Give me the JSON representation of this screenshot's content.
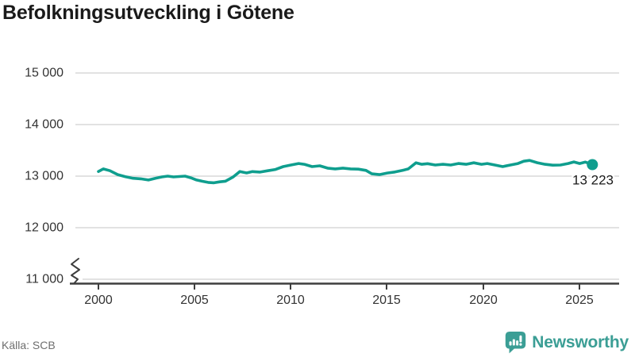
{
  "title": "Befolkningsutveckling i Götene",
  "source": "Källa: SCB",
  "brand": {
    "name": "Newsworthy"
  },
  "end_label": "13 223",
  "colors": {
    "title": "#1a1a1a",
    "line": "#0f9e8e",
    "grid": "#d9d9d9",
    "axis": "#3d3d3d",
    "tick_label": "#333333",
    "end_label": "#1a1a1a",
    "source": "#6e6e6e",
    "brand": "#3b9e95"
  },
  "chart_data": {
    "type": "line",
    "title": "Befolkningsutveckling i Götene",
    "xlabel": "",
    "ylabel": "",
    "legend": "none",
    "grid": "horizontal",
    "xlim": [
      2000,
      2026.1
    ],
    "ylim": [
      11000,
      15000
    ],
    "y_axis_break": true,
    "x_tick_values": [
      2000,
      2005,
      2010,
      2015,
      2020,
      2025
    ],
    "x_tick_labels": [
      "2000",
      "2005",
      "2010",
      "2015",
      "2020",
      "2025"
    ],
    "y_tick_values": [
      15000,
      14000,
      13000,
      12000,
      11000
    ],
    "y_tick_labels": [
      "15 000",
      "14 000",
      "13 000",
      "12 000",
      "11 000"
    ],
    "end_point": {
      "x": 2025.66,
      "value": 13223,
      "label": "13 223"
    },
    "points": [
      [
        2000.0,
        13090
      ],
      [
        2000.25,
        13140
      ],
      [
        2000.6,
        13105
      ],
      [
        2001.0,
        13030
      ],
      [
        2001.4,
        12990
      ],
      [
        2001.8,
        12958
      ],
      [
        2002.2,
        12948
      ],
      [
        2002.6,
        12925
      ],
      [
        2003.0,
        12962
      ],
      [
        2003.3,
        12985
      ],
      [
        2003.6,
        13000
      ],
      [
        2003.9,
        12985
      ],
      [
        2004.2,
        12992
      ],
      [
        2004.5,
        13000
      ],
      [
        2004.8,
        12968
      ],
      [
        2005.1,
        12925
      ],
      [
        2005.4,
        12900
      ],
      [
        2005.7,
        12878
      ],
      [
        2006.0,
        12870
      ],
      [
        2006.3,
        12890
      ],
      [
        2006.6,
        12902
      ],
      [
        2007.0,
        12985
      ],
      [
        2007.35,
        13090
      ],
      [
        2007.7,
        13062
      ],
      [
        2008.0,
        13088
      ],
      [
        2008.4,
        13078
      ],
      [
        2008.8,
        13105
      ],
      [
        2009.2,
        13130
      ],
      [
        2009.6,
        13185
      ],
      [
        2010.0,
        13215
      ],
      [
        2010.4,
        13245
      ],
      [
        2010.7,
        13230
      ],
      [
        2011.1,
        13185
      ],
      [
        2011.5,
        13200
      ],
      [
        2011.9,
        13155
      ],
      [
        2012.3,
        13140
      ],
      [
        2012.7,
        13155
      ],
      [
        2013.1,
        13140
      ],
      [
        2013.5,
        13135
      ],
      [
        2013.9,
        13110
      ],
      [
        2014.2,
        13045
      ],
      [
        2014.6,
        13030
      ],
      [
        2015.0,
        13060
      ],
      [
        2015.4,
        13080
      ],
      [
        2015.8,
        13110
      ],
      [
        2016.1,
        13140
      ],
      [
        2016.5,
        13258
      ],
      [
        2016.8,
        13230
      ],
      [
        2017.1,
        13242
      ],
      [
        2017.5,
        13215
      ],
      [
        2017.9,
        13230
      ],
      [
        2018.3,
        13215
      ],
      [
        2018.7,
        13245
      ],
      [
        2019.1,
        13230
      ],
      [
        2019.5,
        13258
      ],
      [
        2019.9,
        13230
      ],
      [
        2020.2,
        13245
      ],
      [
        2020.6,
        13215
      ],
      [
        2021.0,
        13185
      ],
      [
        2021.4,
        13215
      ],
      [
        2021.8,
        13245
      ],
      [
        2022.1,
        13290
      ],
      [
        2022.4,
        13305
      ],
      [
        2022.8,
        13260
      ],
      [
        2023.2,
        13230
      ],
      [
        2023.6,
        13212
      ],
      [
        2024.0,
        13215
      ],
      [
        2024.4,
        13245
      ],
      [
        2024.7,
        13275
      ],
      [
        2025.0,
        13245
      ],
      [
        2025.3,
        13272
      ],
      [
        2025.66,
        13223
      ]
    ]
  }
}
